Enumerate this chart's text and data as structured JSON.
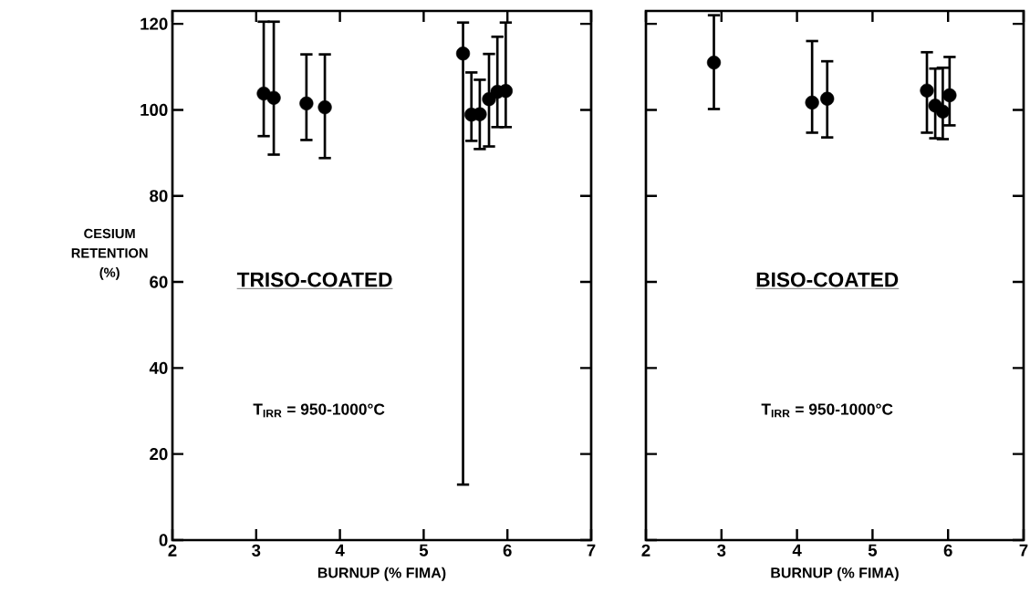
{
  "chart_data": [
    {
      "type": "scatter",
      "xlabel": "BURNUP (% FIMA)",
      "ylabel": "CESIUM RETENTION (%)",
      "annotations": [
        "TRISO-COATED",
        "T$_{IRR}$ = 950-1000°C"
      ],
      "x": [
        3.09,
        3.21,
        3.6,
        3.82,
        5.47,
        5.57,
        5.67,
        5.78,
        5.88,
        5.98
      ],
      "values": [
        103.8,
        102.8,
        101.5,
        100.6,
        113.1,
        98.9,
        99,
        102.5,
        104.2,
        104.4
      ],
      "errors": [
        [
          93.9,
          120.5
        ],
        [
          89.6,
          120.5
        ],
        [
          93,
          112.9
        ],
        [
          88.8,
          112.9
        ],
        [
          12.9,
          120.3
        ],
        [
          92.8,
          108.7
        ],
        [
          90.9,
          107
        ],
        [
          91.5,
          113
        ],
        [
          96,
          117
        ],
        [
          96,
          120.3
        ]
      ],
      "color": "#000000",
      "marker": "circle",
      "xlim": [
        2,
        7
      ],
      "ylim": [
        0,
        123
      ],
      "xticks": [
        2,
        3,
        4,
        5,
        6,
        7
      ],
      "yticks": [
        0,
        20,
        40,
        60,
        80,
        100,
        120
      ]
    },
    {
      "type": "scatter",
      "xlabel": "BURNUP (% FIMA)",
      "annotations": [
        "BISO-COATED",
        "T$_{IRR}$ = 950-1000°C"
      ],
      "x": [
        2.9,
        4.2,
        4.4,
        5.72,
        5.83,
        5.93,
        6.02
      ],
      "values": [
        111,
        101.7,
        102.6,
        104.5,
        101,
        99.6,
        103.4
      ],
      "errors": [
        [
          100.2,
          122
        ],
        [
          94.7,
          116
        ],
        [
          93.6,
          111.3
        ],
        [
          94.7,
          113.4
        ],
        [
          93.4,
          109.6
        ],
        [
          93.2,
          109.8
        ],
        [
          96.4,
          112.3
        ]
      ],
      "color": "#000000",
      "marker": "circle",
      "xlim": [
        2,
        7
      ],
      "ylim": [
        0,
        123
      ],
      "xticks": [
        2,
        3,
        4,
        5,
        6,
        7
      ],
      "yticks": [
        0,
        20,
        40,
        60,
        80,
        100,
        120
      ],
      "tick_labels": "x"
    }
  ]
}
